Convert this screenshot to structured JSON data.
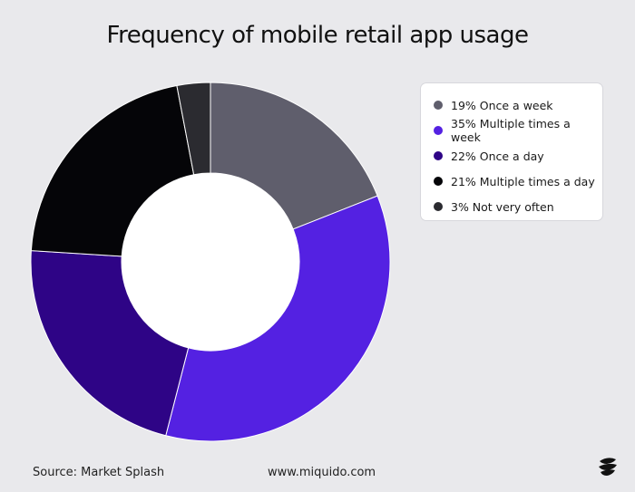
{
  "chart_data": {
    "type": "pie",
    "title": "Frequency of mobile retail app usage",
    "categories": [
      "Once a week",
      "Multiple times a week",
      "Once a day",
      "Multiple times a day",
      "Not very often"
    ],
    "values": [
      19,
      35,
      22,
      21,
      3
    ],
    "labels": [
      "19% Once a week",
      "35% Multiple times a week",
      "22% Once a day",
      "21% Multiple times a day",
      "3% Not very often"
    ],
    "colors": [
      "#5f5e6c",
      "#5421e2",
      "#2e0486",
      "#050508",
      "#2b2b30"
    ],
    "donut": true,
    "legend": "right"
  },
  "footer": {
    "source": "Source: Market Splash",
    "website": "www.miquido.com"
  },
  "logo": {
    "icon": "miquido-logo-icon"
  }
}
